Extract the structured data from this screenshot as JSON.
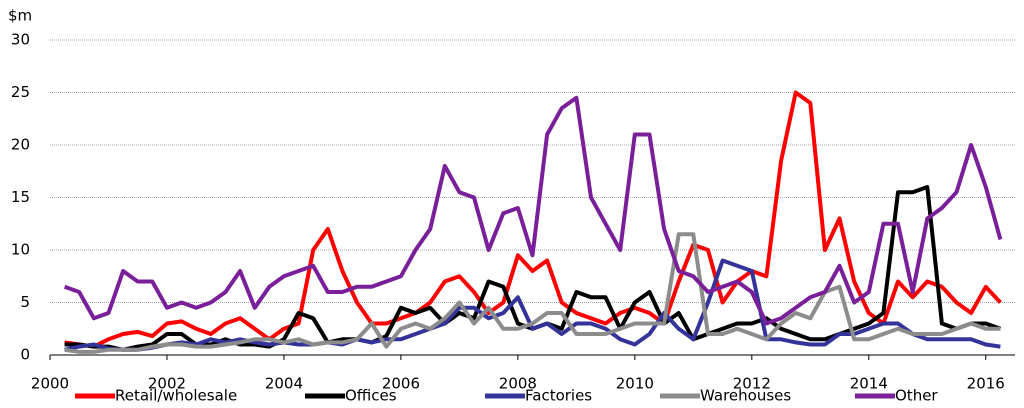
{
  "chart_data": {
    "type": "line",
    "y_label": "$m",
    "x": [
      2000.25,
      2000.5,
      2000.75,
      2001.0,
      2001.25,
      2001.5,
      2001.75,
      2002.0,
      2002.25,
      2002.5,
      2002.75,
      2003.0,
      2003.25,
      2003.5,
      2003.75,
      2004.0,
      2004.25,
      2004.5,
      2004.75,
      2005.0,
      2005.25,
      2005.5,
      2005.75,
      2006.0,
      2006.25,
      2006.5,
      2006.75,
      2007.0,
      2007.25,
      2007.5,
      2007.75,
      2008.0,
      2008.25,
      2008.5,
      2008.75,
      2009.0,
      2009.25,
      2009.5,
      2009.75,
      2010.0,
      2010.25,
      2010.5,
      2010.75,
      2011.0,
      2011.25,
      2011.5,
      2011.75,
      2012.0,
      2012.25,
      2012.5,
      2012.75,
      2013.0,
      2013.25,
      2013.5,
      2013.75,
      2014.0,
      2014.25,
      2014.5,
      2014.75,
      2015.0,
      2015.25,
      2015.5,
      2015.75,
      2016.0,
      2016.25
    ],
    "series": [
      {
        "name": "Retail/wholesale",
        "color": "#ff0000",
        "values": [
          1.2,
          1.0,
          0.8,
          1.5,
          2.0,
          2.2,
          1.8,
          3.0,
          3.2,
          2.5,
          2.0,
          3.0,
          3.5,
          2.5,
          1.5,
          2.5,
          3.0,
          10.0,
          12.0,
          8.0,
          5.0,
          3.0,
          3.0,
          3.5,
          4.0,
          5.0,
          7.0,
          7.5,
          6.0,
          4.0,
          5.0,
          9.5,
          8.0,
          9.0,
          5.0,
          4.0,
          3.5,
          3.0,
          4.0,
          4.5,
          4.0,
          3.0,
          7.0,
          10.5,
          10.0,
          5.0,
          7.0,
          8.0,
          7.5,
          18.5,
          25.0,
          24.0,
          10.0,
          13.0,
          7.0,
          4.0,
          3.0,
          7.0,
          5.5,
          7.0,
          6.5,
          5.0,
          4.0,
          6.5,
          5.0
        ]
      },
      {
        "name": "Offices",
        "color": "#000000",
        "values": [
          1.0,
          1.0,
          0.8,
          0.8,
          0.5,
          0.8,
          1.0,
          2.0,
          2.0,
          1.0,
          1.0,
          1.5,
          1.0,
          1.0,
          0.8,
          1.5,
          4.0,
          3.5,
          1.2,
          1.5,
          1.5,
          1.2,
          1.8,
          4.5,
          4.0,
          4.5,
          3.0,
          4.0,
          3.5,
          7.0,
          6.5,
          3.0,
          2.5,
          3.0,
          2.5,
          6.0,
          5.5,
          5.5,
          2.5,
          5.0,
          6.0,
          3.0,
          4.0,
          1.5,
          2.0,
          2.5,
          3.0,
          3.0,
          3.5,
          2.5,
          2.0,
          1.5,
          1.5,
          2.0,
          2.5,
          3.0,
          4.0,
          15.5,
          15.5,
          16.0,
          3.0,
          2.5,
          3.0,
          3.0,
          2.5
        ]
      },
      {
        "name": "Factories",
        "color": "#333399",
        "values": [
          0.5,
          0.8,
          1.0,
          0.6,
          0.5,
          0.5,
          0.7,
          1.0,
          1.2,
          1.0,
          1.5,
          1.2,
          1.5,
          1.2,
          1.0,
          1.2,
          1.0,
          1.0,
          1.2,
          1.0,
          1.5,
          1.2,
          1.5,
          1.5,
          2.0,
          2.5,
          3.0,
          4.5,
          4.5,
          3.5,
          4.0,
          5.5,
          2.5,
          3.0,
          2.0,
          3.0,
          3.0,
          2.5,
          1.5,
          1.0,
          2.0,
          4.0,
          2.5,
          1.5,
          5.0,
          9.0,
          8.5,
          8.0,
          1.5,
          1.5,
          1.2,
          1.0,
          1.0,
          2.0,
          2.0,
          2.5,
          3.0,
          3.0,
          2.0,
          1.5,
          1.5,
          1.5,
          1.5,
          1.0,
          0.8
        ]
      },
      {
        "name": "Warehouses",
        "color": "#8c8c8c",
        "values": [
          0.5,
          0.3,
          0.3,
          0.5,
          0.5,
          0.5,
          0.8,
          1.0,
          1.0,
          0.8,
          0.8,
          1.0,
          1.2,
          1.5,
          1.5,
          1.2,
          1.5,
          1.0,
          1.2,
          1.2,
          1.5,
          3.0,
          0.8,
          2.5,
          3.0,
          2.5,
          3.5,
          5.0,
          3.0,
          4.5,
          2.5,
          2.5,
          3.0,
          4.0,
          4.0,
          2.0,
          2.0,
          2.0,
          2.5,
          3.0,
          3.0,
          3.0,
          11.5,
          11.5,
          2.0,
          2.0,
          2.5,
          2.0,
          1.5,
          3.0,
          4.0,
          3.5,
          6.0,
          6.5,
          1.5,
          1.5,
          2.0,
          2.5,
          2.0,
          2.0,
          2.0,
          2.5,
          3.0,
          2.5,
          2.5
        ]
      },
      {
        "name": "Other",
        "color": "#7a1f9a",
        "values": [
          6.5,
          6.0,
          3.5,
          4.0,
          8.0,
          7.0,
          7.0,
          4.5,
          5.0,
          4.5,
          5.0,
          6.0,
          8.0,
          4.5,
          6.5,
          7.5,
          8.0,
          8.5,
          6.0,
          6.0,
          6.5,
          6.5,
          7.0,
          7.5,
          10.0,
          12.0,
          18.0,
          15.5,
          15.0,
          10.0,
          13.5,
          14.0,
          9.5,
          21.0,
          23.5,
          24.5,
          15.0,
          12.5,
          10.0,
          21.0,
          21.0,
          12.0,
          8.0,
          7.5,
          6.0,
          6.5,
          7.0,
          6.0,
          3.0,
          3.5,
          4.5,
          5.5,
          6.0,
          8.5,
          5.0,
          6.0,
          12.5,
          12.5,
          6.0,
          13.0,
          14.0,
          15.5,
          20.0,
          16.0,
          11.0
        ]
      }
    ],
    "xlim": [
      2000,
      2016.5
    ],
    "xticks": [
      2000,
      2002,
      2004,
      2006,
      2008,
      2010,
      2012,
      2014,
      2016
    ],
    "ylim": [
      0,
      30
    ],
    "yticks": [
      0,
      5,
      10,
      15,
      20,
      25,
      30
    ],
    "grid": true,
    "legend": "bottom"
  }
}
